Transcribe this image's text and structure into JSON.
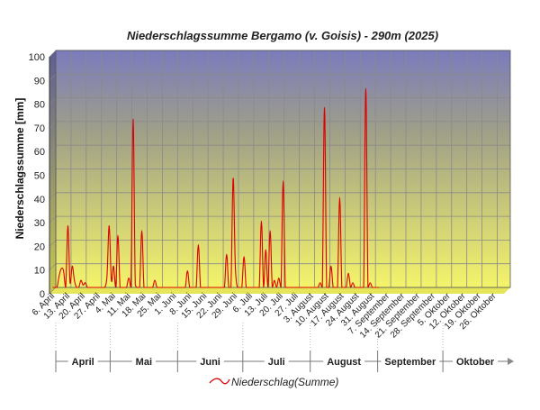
{
  "chart_data": {
    "type": "line",
    "title": "Niederschlagssumme Bergamo (v. Goisis) - 290m (2025)",
    "ylabel": "Niederschlagssumme [mm]",
    "xlabel": "",
    "ylim": [
      0,
      100
    ],
    "yticks": [
      0,
      10,
      20,
      30,
      40,
      50,
      60,
      70,
      80,
      90,
      100
    ],
    "grid": true,
    "legend_position": "bottom",
    "background_gradient": [
      "#7b7bbd",
      "#f4f46a"
    ],
    "colors": {
      "series": "#dd0000",
      "text": "#222222",
      "grid": "#8a8a8a"
    },
    "x_range": [
      "2025-04-06",
      "2025-11-01"
    ],
    "x_tick_labels": [
      {
        "date": "2025-04-06",
        "label": "6. April"
      },
      {
        "date": "2025-04-13",
        "label": "13. April"
      },
      {
        "date": "2025-04-20",
        "label": "20. April"
      },
      {
        "date": "2025-04-27",
        "label": "27. April"
      },
      {
        "date": "2025-05-04",
        "label": "4. Mai"
      },
      {
        "date": "2025-05-11",
        "label": "11. Mai"
      },
      {
        "date": "2025-05-18",
        "label": "18. Mai"
      },
      {
        "date": "2025-05-25",
        "label": "25. Mai"
      },
      {
        "date": "2025-06-01",
        "label": "1. Juni"
      },
      {
        "date": "2025-06-08",
        "label": "8. Juni"
      },
      {
        "date": "2025-06-15",
        "label": "15. Juni"
      },
      {
        "date": "2025-06-22",
        "label": "22. Juni"
      },
      {
        "date": "2025-06-29",
        "label": "29. Juni"
      },
      {
        "date": "2025-07-06",
        "label": "6. Juli"
      },
      {
        "date": "2025-07-13",
        "label": "13. Juli"
      },
      {
        "date": "2025-07-20",
        "label": "20. Juli"
      },
      {
        "date": "2025-07-27",
        "label": "27. Juli"
      },
      {
        "date": "2025-08-03",
        "label": "3. August"
      },
      {
        "date": "2025-08-10",
        "label": "10. August"
      },
      {
        "date": "2025-08-17",
        "label": "17. August"
      },
      {
        "date": "2025-08-24",
        "label": "24. August"
      },
      {
        "date": "2025-08-31",
        "label": "31. August"
      },
      {
        "date": "2025-09-07",
        "label": "7. September"
      },
      {
        "date": "2025-09-14",
        "label": "14. September"
      },
      {
        "date": "2025-09-21",
        "label": "21. September"
      },
      {
        "date": "2025-09-28",
        "label": "28. September"
      },
      {
        "date": "2025-10-05",
        "label": "5. Oktober"
      },
      {
        "date": "2025-10-12",
        "label": "12. Oktober"
      },
      {
        "date": "2025-10-19",
        "label": "19. Oktober"
      },
      {
        "date": "2025-10-26",
        "label": "26. Oktober"
      }
    ],
    "months": [
      {
        "label": "April",
        "start": "2025-04-06",
        "end": "2025-05-01"
      },
      {
        "label": "Mai",
        "start": "2025-05-01",
        "end": "2025-06-01"
      },
      {
        "label": "Juni",
        "start": "2025-06-01",
        "end": "2025-07-01"
      },
      {
        "label": "Juli",
        "start": "2025-07-01",
        "end": "2025-08-01"
      },
      {
        "label": "August",
        "start": "2025-08-01",
        "end": "2025-09-01"
      },
      {
        "label": "September",
        "start": "2025-09-01",
        "end": "2025-10-01"
      },
      {
        "label": "Oktober",
        "start": "2025-10-01",
        "end": "2025-11-01"
      }
    ],
    "series": [
      {
        "name": "Niederschlag(Summe)",
        "color": "#dd0000",
        "points": [
          [
            "2025-04-06",
            0
          ],
          [
            "2025-04-07",
            0
          ],
          [
            "2025-04-08",
            0
          ],
          [
            "2025-04-09",
            5
          ],
          [
            "2025-04-10",
            8
          ],
          [
            "2025-04-11",
            7
          ],
          [
            "2025-04-12",
            0
          ],
          [
            "2025-04-13",
            26
          ],
          [
            "2025-04-14",
            2
          ],
          [
            "2025-04-15",
            9
          ],
          [
            "2025-04-16",
            3
          ],
          [
            "2025-04-17",
            0
          ],
          [
            "2025-04-18",
            0
          ],
          [
            "2025-04-19",
            3
          ],
          [
            "2025-04-20",
            1
          ],
          [
            "2025-04-21",
            2
          ],
          [
            "2025-04-22",
            0
          ],
          [
            "2025-04-23",
            0
          ],
          [
            "2025-04-24",
            0
          ],
          [
            "2025-04-25",
            0
          ],
          [
            "2025-04-26",
            0
          ],
          [
            "2025-04-27",
            0
          ],
          [
            "2025-04-28",
            0
          ],
          [
            "2025-04-29",
            0
          ],
          [
            "2025-04-30",
            0
          ],
          [
            "2025-05-01",
            5
          ],
          [
            "2025-05-02",
            26
          ],
          [
            "2025-05-03",
            3
          ],
          [
            "2025-05-04",
            9
          ],
          [
            "2025-05-05",
            0
          ],
          [
            "2025-05-06",
            22
          ],
          [
            "2025-05-07",
            0
          ],
          [
            "2025-05-08",
            0
          ],
          [
            "2025-05-09",
            0
          ],
          [
            "2025-05-10",
            0
          ],
          [
            "2025-05-11",
            4
          ],
          [
            "2025-05-12",
            0
          ],
          [
            "2025-05-13",
            71
          ],
          [
            "2025-05-14",
            1
          ],
          [
            "2025-05-15",
            0
          ],
          [
            "2025-05-16",
            0
          ],
          [
            "2025-05-17",
            24
          ],
          [
            "2025-05-18",
            0
          ],
          [
            "2025-05-19",
            0
          ],
          [
            "2025-05-20",
            0
          ],
          [
            "2025-05-21",
            0
          ],
          [
            "2025-05-22",
            0
          ],
          [
            "2025-05-23",
            3
          ],
          [
            "2025-05-24",
            0
          ],
          [
            "2025-05-25",
            0
          ],
          [
            "2025-05-26",
            0
          ],
          [
            "2025-05-27",
            0
          ],
          [
            "2025-05-28",
            0
          ],
          [
            "2025-05-29",
            0
          ],
          [
            "2025-05-30",
            0
          ],
          [
            "2025-05-31",
            0
          ],
          [
            "2025-06-01",
            0
          ],
          [
            "2025-06-02",
            0
          ],
          [
            "2025-06-03",
            0
          ],
          [
            "2025-06-04",
            0
          ],
          [
            "2025-06-05",
            0
          ],
          [
            "2025-06-06",
            0
          ],
          [
            "2025-06-07",
            7
          ],
          [
            "2025-06-08",
            0
          ],
          [
            "2025-06-09",
            0
          ],
          [
            "2025-06-10",
            0
          ],
          [
            "2025-06-11",
            0
          ],
          [
            "2025-06-12",
            18
          ],
          [
            "2025-06-13",
            0
          ],
          [
            "2025-06-14",
            0
          ],
          [
            "2025-06-15",
            0
          ],
          [
            "2025-06-16",
            0
          ],
          [
            "2025-06-17",
            0
          ],
          [
            "2025-06-18",
            0
          ],
          [
            "2025-06-19",
            0
          ],
          [
            "2025-06-20",
            0
          ],
          [
            "2025-06-21",
            0
          ],
          [
            "2025-06-22",
            0
          ],
          [
            "2025-06-23",
            0
          ],
          [
            "2025-06-24",
            0
          ],
          [
            "2025-06-25",
            14
          ],
          [
            "2025-06-26",
            0
          ],
          [
            "2025-06-27",
            0
          ],
          [
            "2025-06-28",
            46
          ],
          [
            "2025-06-29",
            9
          ],
          [
            "2025-06-30",
            0
          ],
          [
            "2025-07-01",
            0
          ],
          [
            "2025-07-02",
            0
          ],
          [
            "2025-07-03",
            13
          ],
          [
            "2025-07-04",
            0
          ],
          [
            "2025-07-05",
            0
          ],
          [
            "2025-07-06",
            0
          ],
          [
            "2025-07-07",
            0
          ],
          [
            "2025-07-08",
            0
          ],
          [
            "2025-07-09",
            0
          ],
          [
            "2025-07-10",
            0
          ],
          [
            "2025-07-11",
            28
          ],
          [
            "2025-07-12",
            0
          ],
          [
            "2025-07-13",
            16
          ],
          [
            "2025-07-14",
            0
          ],
          [
            "2025-07-15",
            24
          ],
          [
            "2025-07-16",
            0
          ],
          [
            "2025-07-17",
            3
          ],
          [
            "2025-07-18",
            0
          ],
          [
            "2025-07-19",
            4
          ],
          [
            "2025-07-20",
            0
          ],
          [
            "2025-07-21",
            45
          ],
          [
            "2025-07-22",
            0
          ],
          [
            "2025-07-23",
            0
          ],
          [
            "2025-07-24",
            0
          ],
          [
            "2025-07-25",
            0
          ],
          [
            "2025-07-26",
            0
          ],
          [
            "2025-07-27",
            0
          ],
          [
            "2025-07-28",
            0
          ],
          [
            "2025-07-29",
            0
          ],
          [
            "2025-07-30",
            0
          ],
          [
            "2025-07-31",
            0
          ],
          [
            "2025-08-01",
            0
          ],
          [
            "2025-08-02",
            0
          ],
          [
            "2025-08-03",
            0
          ],
          [
            "2025-08-04",
            0
          ],
          [
            "2025-08-05",
            0
          ],
          [
            "2025-08-06",
            0
          ],
          [
            "2025-08-07",
            2
          ],
          [
            "2025-08-08",
            0
          ],
          [
            "2025-08-09",
            76
          ],
          [
            "2025-08-10",
            0
          ],
          [
            "2025-08-11",
            0
          ],
          [
            "2025-08-12",
            9
          ],
          [
            "2025-08-13",
            0
          ],
          [
            "2025-08-14",
            0
          ],
          [
            "2025-08-15",
            0
          ],
          [
            "2025-08-16",
            38
          ],
          [
            "2025-08-17",
            0
          ],
          [
            "2025-08-18",
            0
          ],
          [
            "2025-08-19",
            0
          ],
          [
            "2025-08-20",
            6
          ],
          [
            "2025-08-21",
            0
          ],
          [
            "2025-08-22",
            2
          ],
          [
            "2025-08-23",
            0
          ],
          [
            "2025-08-24",
            0
          ],
          [
            "2025-08-25",
            0
          ],
          [
            "2025-08-26",
            0
          ],
          [
            "2025-08-27",
            0
          ],
          [
            "2025-08-28",
            84
          ],
          [
            "2025-08-29",
            0
          ],
          [
            "2025-08-30",
            2
          ],
          [
            "2025-08-31",
            0
          ],
          [
            "2025-09-01",
            0
          ],
          [
            "2025-09-02",
            0
          ],
          [
            "2025-09-03",
            0
          ]
        ]
      }
    ]
  }
}
